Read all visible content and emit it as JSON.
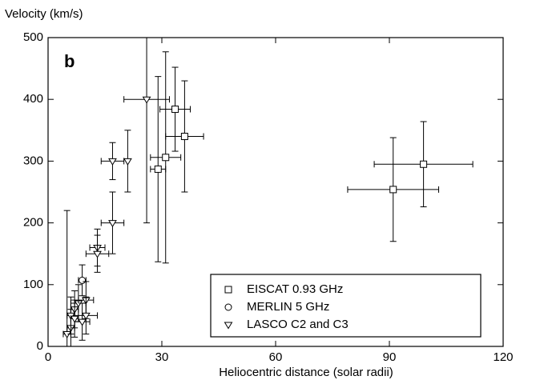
{
  "chart_data": {
    "type": "scatter",
    "ylabel": "Velocity (km/s)",
    "xlabel": "Heliocentric distance (solar radii)",
    "annotation": "b",
    "xlim": [
      0,
      120
    ],
    "xticks": [
      0,
      30,
      60,
      90,
      120
    ],
    "ylim": [
      0,
      500
    ],
    "yticks": [
      0,
      100,
      200,
      300,
      400,
      500
    ],
    "legend": "lower right",
    "series": [
      {
        "name": "EISCAT 0.93 GHz",
        "marker": "square",
        "color": "#000000",
        "x": [
          33.5,
          36,
          31,
          29,
          91,
          99
        ],
        "values": [
          384,
          340,
          306,
          287,
          254,
          295
        ],
        "xerr": [
          4,
          5,
          4,
          2,
          12,
          13
        ],
        "yerr": [
          68,
          90,
          171,
          150,
          84,
          69
        ]
      },
      {
        "name": "MERLIN 5 GHz",
        "marker": "circle",
        "color": "#000000",
        "x": [
          9
        ],
        "values": [
          107
        ],
        "xerr": [
          1
        ],
        "yerr": [
          25
        ]
      },
      {
        "name": "LASCO C2 and C3",
        "marker": "triangle",
        "color": "#000000",
        "x": [
          26,
          21,
          17,
          17,
          13,
          13,
          5,
          6,
          6,
          7,
          8,
          9,
          10,
          10,
          7
        ],
        "values": [
          400,
          300,
          300,
          200,
          160,
          150,
          20,
          30,
          50,
          60,
          70,
          40,
          75,
          50,
          45
        ],
        "xerr": [
          6,
          0,
          3,
          3,
          2,
          3,
          1,
          1,
          1,
          1,
          2,
          2,
          2,
          3,
          1
        ],
        "yerr": [
          200,
          50,
          30,
          50,
          30,
          30,
          200,
          30,
          30,
          30,
          30,
          30,
          30,
          30,
          30
        ]
      }
    ]
  }
}
